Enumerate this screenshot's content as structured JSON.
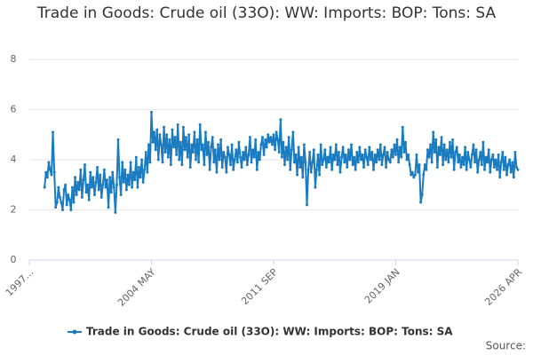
{
  "chart_data": {
    "type": "line",
    "title": "Trade in Goods: Crude oil (33O): WW: Imports: BOP: Tons: SA",
    "source": "Source:",
    "categories": [
      "1997...",
      null,
      null,
      null,
      null,
      null,
      null,
      null,
      null,
      null,
      null,
      null,
      null,
      null,
      null,
      null,
      null,
      null,
      null,
      null,
      null,
      null,
      null,
      null,
      null,
      null,
      null,
      null,
      null,
      null,
      null,
      null,
      null,
      null,
      null,
      null,
      null,
      null,
      null,
      null,
      null,
      null,
      null,
      null,
      null,
      null,
      null,
      null,
      null,
      null,
      null,
      null,
      null,
      null,
      null,
      null,
      null,
      null,
      null,
      null,
      null,
      null,
      null,
      null,
      null,
      null,
      null,
      null,
      null,
      null,
      null,
      null,
      null,
      null,
      null,
      null,
      null,
      null,
      null,
      null,
      null,
      null,
      null,
      null,
      null,
      null,
      null,
      null,
      "2004 MAY",
      null,
      null,
      null,
      null,
      null,
      null,
      null,
      null,
      null,
      null,
      null,
      null,
      null,
      null,
      null,
      null,
      null,
      null,
      null,
      null,
      null,
      null,
      null,
      null,
      null,
      null,
      null,
      null,
      null,
      null,
      null,
      null,
      null,
      null,
      null,
      null,
      null,
      null,
      null,
      null,
      null,
      null,
      null,
      null,
      null,
      null,
      null,
      null,
      null,
      null,
      null,
      null,
      null,
      null,
      null,
      null,
      null,
      null,
      null,
      null,
      null,
      null,
      null,
      null,
      null,
      null,
      null,
      null,
      null,
      null,
      null,
      null,
      null,
      null,
      null,
      null,
      null,
      null,
      null,
      null,
      null,
      null,
      null,
      null,
      null,
      null,
      null,
      "2011 SEP",
      null,
      null,
      null,
      null,
      null,
      null,
      null,
      null,
      null,
      null,
      null,
      null,
      null,
      null,
      null,
      null,
      null,
      null,
      null,
      null,
      null,
      null,
      null,
      null,
      null,
      null,
      null,
      null,
      null,
      null,
      null,
      null,
      null,
      null,
      null,
      null,
      null,
      null,
      null,
      null,
      null,
      null,
      null,
      null,
      null,
      null,
      null,
      null,
      null,
      null,
      null,
      null,
      null,
      null,
      null,
      null,
      null,
      null,
      null,
      null,
      null,
      null,
      null,
      null,
      null,
      null,
      null,
      null,
      null,
      null,
      null,
      null,
      null,
      null,
      null,
      null,
      null,
      null,
      null,
      null,
      null,
      null,
      null,
      null,
      null,
      null,
      null,
      "2019 JAN",
      null,
      null,
      null,
      null,
      null,
      null,
      null,
      null,
      null,
      null,
      null,
      null,
      null,
      null,
      null,
      null,
      null,
      null,
      null,
      null,
      null,
      null,
      null,
      null,
      null,
      null,
      null,
      null,
      null,
      null,
      null,
      null,
      null,
      null,
      null,
      null,
      null,
      null,
      null,
      null,
      null,
      null,
      null,
      null,
      null,
      null,
      null,
      null,
      null,
      null,
      null,
      null,
      null,
      null,
      null,
      null,
      null,
      null,
      null,
      null,
      null,
      null,
      null,
      null,
      null,
      null,
      null,
      null,
      null,
      null,
      null,
      null,
      null,
      null,
      null,
      null,
      null,
      null,
      null,
      null,
      null,
      null,
      null,
      null,
      null,
      null,
      null,
      "2026 APR"
    ],
    "series": [
      {
        "name": "Trade in Goods: Crude oil (33O): WW: Imports: BOP: Tons: SA",
        "color": "#1a7bc1",
        "values": [
          null,
          null,
          null,
          null,
          null,
          null,
          null,
          null,
          null,
          null,
          null,
          2.9,
          3.5,
          3.3,
          3.9,
          3.6,
          3.4,
          5.1,
          3.5,
          2.1,
          2.3,
          2.9,
          2.5,
          2.3,
          2.0,
          2.8,
          3.0,
          2.2,
          2.6,
          2.4,
          2.0,
          2.9,
          2.3,
          3.3,
          2.6,
          3.1,
          2.8,
          3.6,
          2.5,
          3.2,
          3.8,
          2.7,
          3.0,
          2.4,
          3.5,
          2.9,
          3.3,
          2.6,
          3.1,
          3.7,
          2.8,
          3.4,
          2.5,
          3.0,
          3.6,
          2.9,
          3.2,
          2.1,
          3.3,
          2.7,
          3.5,
          2.9,
          1.9,
          3.0,
          4.8,
          3.3,
          2.6,
          3.9,
          3.1,
          3.6,
          2.8,
          3.4,
          3.0,
          3.9,
          2.9,
          3.5,
          3.2,
          4.1,
          2.9,
          3.7,
          3.3,
          4.0,
          3.1,
          3.6,
          4.3,
          3.5,
          4.6,
          3.9,
          5.9,
          4.7,
          5.1,
          4.4,
          5.2,
          4.0,
          5.0,
          4.6,
          3.9,
          5.3,
          4.3,
          5.0,
          4.1,
          4.8,
          3.8,
          5.2,
          4.5,
          4.9,
          4.2,
          5.4,
          4.0,
          4.7,
          3.8,
          5.3,
          4.4,
          4.9,
          4.1,
          5.0,
          3.7,
          4.6,
          4.3,
          5.1,
          4.0,
          4.8,
          3.9,
          5.4,
          4.4,
          4.6,
          3.8,
          5.1,
          4.2,
          4.7,
          3.6,
          4.5,
          4.9,
          3.9,
          4.4,
          3.5,
          4.6,
          4.0,
          4.8,
          3.7,
          4.3,
          4.1,
          3.5,
          4.5,
          4.2,
          3.8,
          4.6,
          3.6,
          4.0,
          4.4,
          3.9,
          4.7,
          4.1,
          3.7,
          4.3,
          4.0,
          4.5,
          3.8,
          4.2,
          4.9,
          3.9,
          4.4,
          4.1,
          4.8,
          3.6,
          4.3,
          4.0,
          4.6,
          4.9,
          4.2,
          4.8,
          4.5,
          5.0,
          4.7,
          4.9,
          4.6,
          5.0,
          4.4,
          5.1,
          4.8,
          4.3,
          5.6,
          4.1,
          4.7,
          3.8,
          4.5,
          4.0,
          4.9,
          3.6,
          4.4,
          5.1,
          3.9,
          4.2,
          3.4,
          4.5,
          3.7,
          4.1,
          3.3,
          4.6,
          3.9,
          2.2,
          3.6,
          4.3,
          3.5,
          3.9,
          4.4,
          2.9,
          3.6,
          4.2,
          3.4,
          4.6,
          3.8,
          4.0,
          4.4,
          3.7,
          4.1,
          3.9,
          4.5,
          3.6,
          4.2,
          4.0,
          4.6,
          3.8,
          4.3,
          3.5,
          4.1,
          4.5,
          3.9,
          4.2,
          3.7,
          4.4,
          4.0,
          4.6,
          3.8,
          4.1,
          3.6,
          4.3,
          3.9,
          4.5,
          4.0,
          4.2,
          3.7,
          4.4,
          4.1,
          3.8,
          4.5,
          4.0,
          4.3,
          3.6,
          4.2,
          3.9,
          4.4,
          4.0,
          4.6,
          3.8,
          4.2,
          4.5,
          3.7,
          4.3,
          4.0,
          3.9,
          4.4,
          4.1,
          4.6,
          4.2,
          4.8,
          3.9,
          4.5,
          4.1,
          5.3,
          4.3,
          4.7,
          4.0,
          4.2,
          3.8,
          3.4,
          3.5,
          3.3,
          3.4,
          4.2,
          3.5,
          3.8,
          2.3,
          2.6,
          3.4,
          3.8,
          3.6,
          4.4,
          4.1,
          4.6,
          3.9,
          5.1,
          4.3,
          4.8,
          3.7,
          4.5,
          4.2,
          4.9,
          3.8,
          4.6,
          4.0,
          4.4,
          3.9,
          4.7,
          4.1,
          4.8,
          3.6,
          4.3,
          4.5,
          3.9,
          4.2,
          3.7,
          4.1,
          3.8,
          4.5,
          3.6,
          4.3,
          4.0,
          3.7,
          4.2,
          4.6,
          3.9,
          4.4,
          3.5,
          4.0,
          4.3,
          3.8,
          4.7,
          3.6,
          4.1,
          3.9,
          4.4,
          3.5,
          4.0,
          4.2,
          3.7,
          4.0,
          3.6,
          4.2,
          3.3,
          3.9,
          4.3,
          3.6,
          4.1,
          3.4,
          3.8,
          4.0,
          3.5,
          3.9,
          3.3,
          4.3,
          3.7,
          3.6
        ]
      }
    ],
    "ylim": [
      0,
      8
    ],
    "yticks": [
      0,
      2,
      4,
      6,
      8
    ],
    "grid": true,
    "legend": "bottom"
  }
}
